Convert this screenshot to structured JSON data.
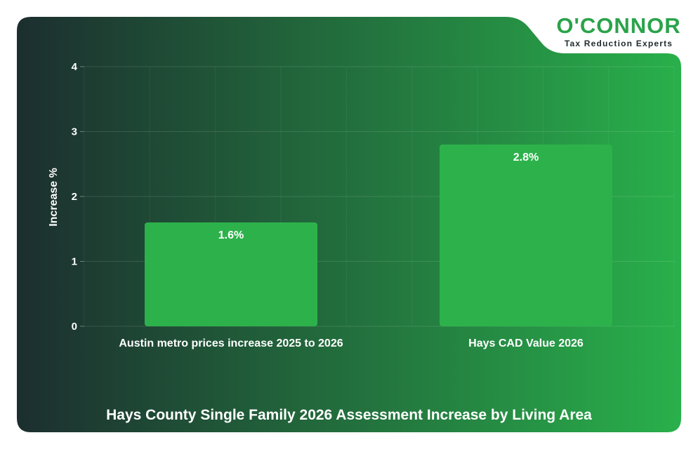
{
  "brand": {
    "name": "O'CONNOR",
    "tagline": "Tax Reduction Experts",
    "color": "#2aa34a"
  },
  "chart_data": {
    "type": "bar",
    "title": "Hays County Single Family 2026 Assessment Increase by Living Area",
    "xlabel": "",
    "ylabel": "Increase %",
    "ylim": [
      0,
      4
    ],
    "yticks": [
      "0",
      "1",
      "2",
      "3",
      "4"
    ],
    "grid": true,
    "categories": [
      "Austin metro prices increase 2025 to 2026",
      "Hays CAD Value 2026"
    ],
    "values": [
      1.6,
      2.8
    ],
    "data_labels": [
      "1.6%",
      "2.8%"
    ],
    "bar_color": "#2db24b",
    "background_colors": [
      "#1c2e2f",
      "#29b04b"
    ]
  }
}
